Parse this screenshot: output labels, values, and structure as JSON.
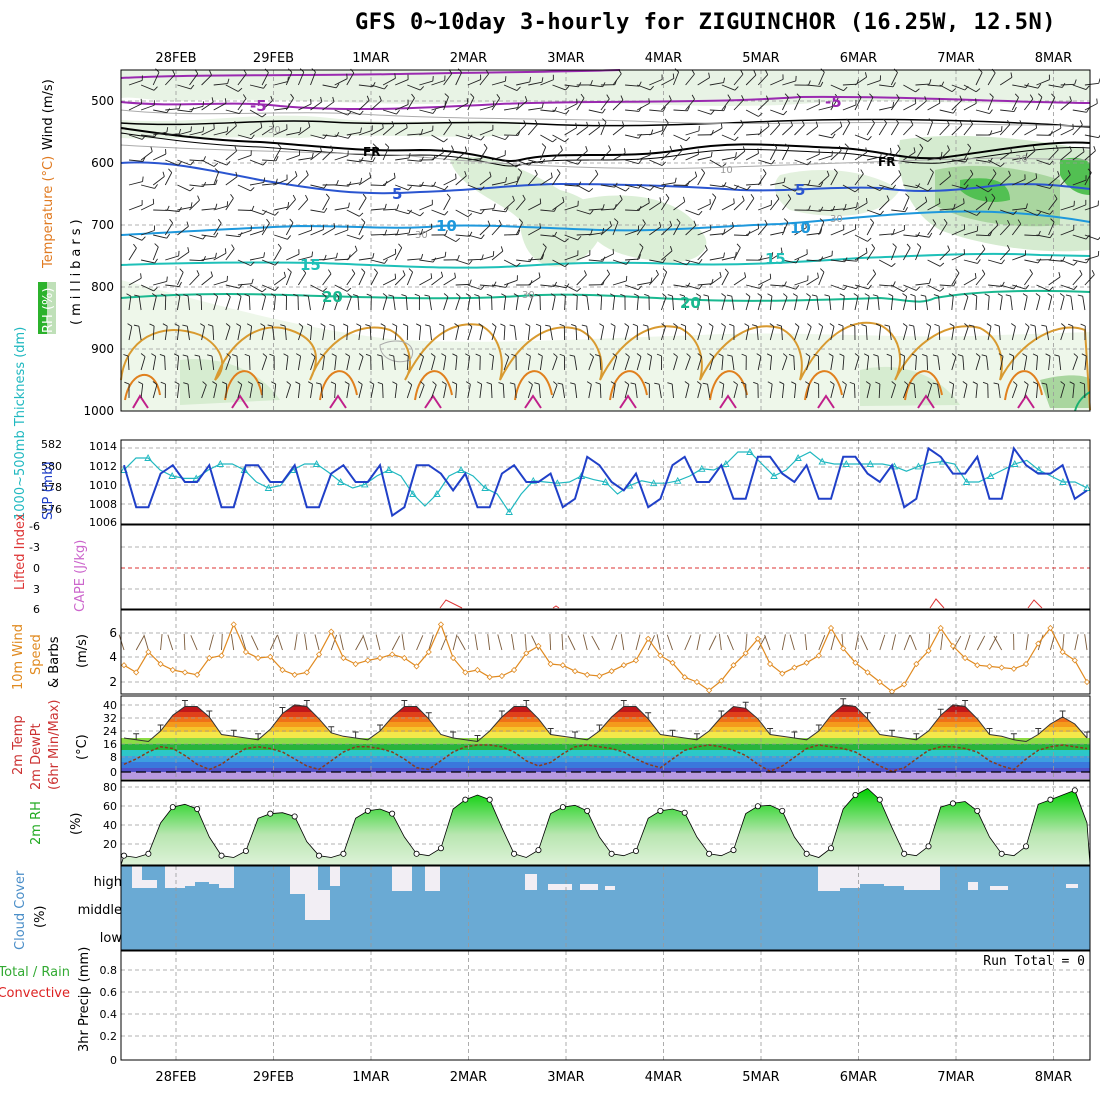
{
  "title": "GFS 0~10day 3-hourly for ZIGUINCHOR (16.25W, 12.5N)",
  "dates": [
    "28FEB",
    "29FEB",
    "1MAR",
    "2MAR",
    "3MAR",
    "4MAR",
    "5MAR",
    "6MAR",
    "7MAR",
    "8MAR"
  ],
  "colors": {
    "grid": "#aaaaaa",
    "frame": "#000000",
    "cloud": "#6aaad4",
    "cape": "#cc66cc",
    "slp": "#2040c8",
    "thick": "#20b8c0",
    "wind": "#e08a20",
    "rh": "#22cc22",
    "precip_total": "#33aa33",
    "precip_conv": "#dd2222"
  },
  "panels": {
    "upper": {
      "label_rh": "RH (%)",
      "label_temp": "Temperature (°C)",
      "label_wind": "Wind (m/s)",
      "label_units": "(millibars)",
      "ticks": [
        "500",
        "600",
        "700",
        "800",
        "900",
        "1000"
      ],
      "contour_labels": [
        "-5",
        "-5",
        "FR",
        "FR",
        "5",
        "5",
        "10",
        "10",
        "15",
        "15",
        "20",
        "20",
        "30",
        "30",
        "30",
        "30",
        "30",
        "10"
      ]
    },
    "slp": {
      "label_thick": "1000~500mb Thickness (dm)",
      "label_slp": "SLP (mb)",
      "left_ticks": [
        "582",
        "580",
        "578",
        "576"
      ],
      "right_ticks": [
        "1014",
        "1012",
        "1010",
        "1008",
        "1006"
      ]
    },
    "li": {
      "label_li": "Lifted Index",
      "label_cape": "CAPE (J/kg)",
      "ticks": [
        "-6",
        "-3",
        "0",
        "3",
        "6"
      ]
    },
    "wind10": {
      "label1": "10m Wind",
      "label2": "Speed",
      "label3": "& Barbs",
      "units": "(m/s)",
      "ticks": [
        "6",
        "4",
        "2"
      ]
    },
    "temp": {
      "label1": "2m Temp",
      "label2": "2m DewPt",
      "label3": "(6hr Min/Max)",
      "units": "(°C)",
      "ticks": [
        "40",
        "32",
        "24",
        "16",
        "8",
        "0"
      ]
    },
    "rh2m": {
      "label": "2m RH",
      "units": "(%)",
      "ticks": [
        "80",
        "60",
        "40",
        "20"
      ]
    },
    "cloud": {
      "label": "Cloud Cover",
      "units": "(%)",
      "levels": [
        "high",
        "middle",
        "low"
      ]
    },
    "precip": {
      "label1": "Total / Rain",
      "label2": "Convective",
      "label3": "3hr Precip (mm)",
      "run_total": "Run Total = 0",
      "ticks": [
        "0.8",
        "0.6",
        "0.4",
        "0.2",
        "0"
      ]
    }
  },
  "chart_data": [
    {
      "type": "line",
      "name": "SLP",
      "ylabel": "SLP (mb)",
      "ylim": [
        1005,
        1015
      ],
      "values": [
        1012,
        1007,
        1007,
        1011,
        1012,
        1010,
        1010,
        1012,
        1007,
        1007,
        1012,
        1012,
        1010,
        1010,
        1012,
        1007,
        1007,
        1011,
        1012,
        1010,
        1010,
        1012,
        1006,
        1007,
        1012,
        1012,
        1011,
        1009,
        1011,
        1007,
        1007,
        1011,
        1012,
        1010,
        1010,
        1011,
        1007,
        1008,
        1013,
        1012,
        1010,
        1009,
        1011,
        1007,
        1008,
        1012,
        1013,
        1010,
        1010,
        1012,
        1008,
        1008,
        1013,
        1013,
        1011,
        1010,
        1012,
        1008,
        1008,
        1013,
        1013,
        1011,
        1010,
        1012,
        1007,
        1008,
        1014,
        1013,
        1011,
        1011,
        1013,
        1008,
        1008,
        1014,
        1012,
        1011,
        1011,
        1012,
        1008,
        1009
      ]
    },
    {
      "type": "line",
      "name": "1000~500mb Thickness",
      "ylabel": "Thickness (dm)",
      "ylim": [
        575,
        582
      ],
      "values": [
        579.5,
        580.5,
        580.5,
        579.5,
        579,
        578.8,
        578.8,
        579.5,
        580,
        580,
        579.5,
        578.5,
        578,
        578.2,
        579.5,
        580,
        580,
        579.3,
        578.5,
        578,
        578.3,
        579,
        579.5,
        579,
        577.5,
        576.5,
        577.5,
        579,
        579.5,
        579,
        578,
        577.5,
        576,
        577.5,
        578.6,
        578.5,
        578.4,
        578.5,
        579,
        578.7,
        578.5,
        577.5,
        578.2,
        578.6,
        578.4,
        578.4,
        578.6,
        579,
        579.6,
        579.5,
        580,
        581,
        581,
        580,
        579,
        579.5,
        580.5,
        581,
        580.2,
        580,
        580,
        580,
        580,
        580,
        579.8,
        579.4,
        579.8,
        580.1,
        580.2,
        580,
        578.5,
        578.5,
        579,
        579.5,
        580,
        580.3,
        579.5,
        579,
        578.5,
        578.5,
        578
      ]
    },
    {
      "type": "line",
      "name": "10m Wind Speed",
      "ylabel": "(m/s)",
      "ylim": [
        1,
        8
      ],
      "values": [
        3.4,
        2.8,
        4.5,
        3.5,
        3.0,
        2.8,
        2.6,
        4.0,
        4.2,
        6.8,
        4.5,
        4.0,
        4.1,
        3.0,
        2.6,
        2.8,
        4.3,
        6.2,
        4.0,
        3.5,
        3.8,
        4.0,
        4.3,
        4.0,
        3.3,
        4.5,
        6.8,
        4.0,
        2.8,
        3.0,
        2.4,
        2.5,
        3.0,
        4.4,
        5.0,
        3.5,
        3.4,
        2.9,
        2.6,
        2.5,
        2.9,
        3.4,
        3.8,
        5.6,
        4.2,
        3.6,
        2.4,
        2.0,
        1.3,
        2.1,
        3.4,
        4.4,
        5.6,
        3.5,
        2.7,
        3.2,
        3.6,
        4.2,
        6.5,
        4.8,
        3.6,
        2.8,
        2.0,
        1.2,
        1.8,
        3.5,
        4.6,
        6.5,
        5.0,
        4.0,
        3.4,
        3.3,
        3.2,
        3.1,
        3.5,
        5.2,
        6.5,
        4.5,
        3.8,
        2.0
      ]
    },
    {
      "type": "area",
      "name": "2m Temp",
      "ylabel": "(°C)",
      "ylim": [
        -4,
        44
      ],
      "values": [
        20,
        19,
        18,
        24,
        33,
        38,
        38,
        32,
        22,
        21,
        20,
        19,
        25,
        34,
        39,
        38,
        31,
        23,
        21,
        20,
        19,
        24,
        32,
        38,
        38,
        31,
        22,
        20,
        19,
        18,
        24,
        32,
        38,
        38,
        31,
        22,
        21,
        20,
        19,
        24,
        32,
        38,
        38,
        31,
        22,
        21,
        20,
        19,
        24,
        32,
        38,
        37,
        31,
        22,
        21,
        20,
        19,
        24,
        33,
        39,
        38,
        31,
        22,
        21,
        20,
        19,
        24,
        33,
        39,
        38,
        31,
        22,
        21,
        19,
        18,
        22,
        28,
        32,
        28,
        20
      ]
    },
    {
      "type": "line",
      "name": "2m DewPt",
      "ylabel": "(°C)",
      "ylim": [
        -4,
        44
      ],
      "values": [
        5,
        8,
        12,
        15,
        14,
        10,
        5,
        2,
        5,
        10,
        14,
        15,
        14,
        12,
        8,
        4,
        2,
        7,
        12,
        15,
        15,
        14,
        12,
        8,
        3,
        2,
        7,
        12,
        15,
        16,
        16,
        15,
        12,
        7,
        4,
        6,
        11,
        15,
        16,
        15,
        14,
        12,
        8,
        5,
        3,
        8,
        13,
        15,
        16,
        15,
        13,
        10,
        5,
        1,
        4,
        9,
        14,
        16,
        15,
        14,
        12,
        8,
        4,
        1,
        3,
        8,
        13,
        15,
        15,
        14,
        12,
        7,
        4,
        2,
        8,
        13,
        15,
        16,
        15,
        14
      ]
    },
    {
      "type": "area",
      "name": "2m RH",
      "ylabel": "(%)",
      "ylim": [
        0,
        90
      ],
      "values": [
        10,
        8,
        12,
        45,
        62,
        65,
        60,
        30,
        10,
        8,
        15,
        50,
        55,
        56,
        52,
        25,
        10,
        8,
        12,
        50,
        58,
        60,
        55,
        30,
        12,
        10,
        18,
        60,
        70,
        75,
        70,
        40,
        12,
        8,
        16,
        55,
        62,
        64,
        58,
        30,
        12,
        10,
        15,
        50,
        58,
        60,
        56,
        30,
        12,
        10,
        16,
        55,
        63,
        64,
        58,
        30,
        12,
        8,
        18,
        60,
        75,
        82,
        70,
        40,
        12,
        10,
        20,
        62,
        66,
        68,
        58,
        30,
        12,
        10,
        20,
        65,
        70,
        75,
        80,
        45
      ]
    }
  ]
}
